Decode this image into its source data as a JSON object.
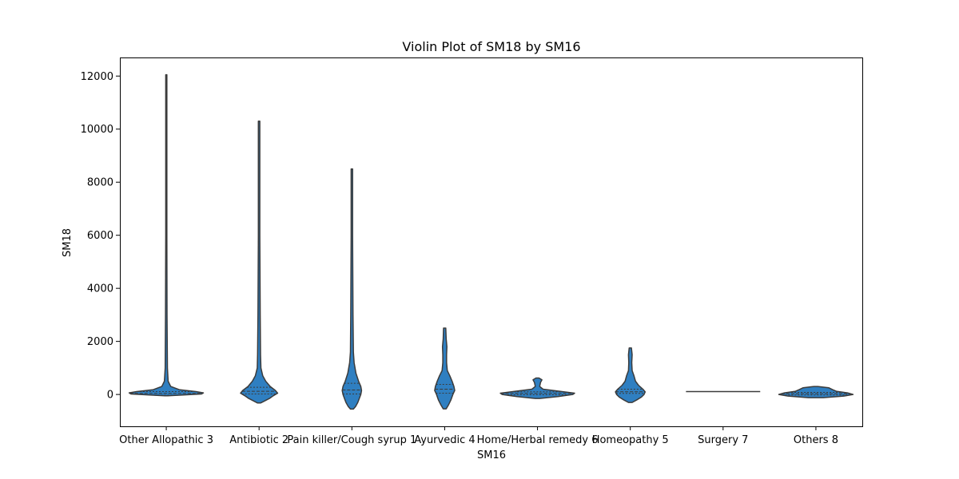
{
  "chart_data": {
    "type": "violin",
    "title": "Violin Plot of SM18 by SM16",
    "xlabel": "SM16",
    "ylabel": "SM18",
    "ylim": [
      -1200,
      12700
    ],
    "yticks": [
      0,
      2000,
      4000,
      6000,
      8000,
      10000,
      12000
    ],
    "grid": false,
    "legend": "none",
    "color": "#2f7fc1",
    "edge_color": "#3b3b3b",
    "inner": "quartile",
    "categories": [
      "Other Allopathic 3",
      "Antibiotic 2",
      "Pain killer/Cough syrup 1",
      "Ayurvedic 4",
      "Home/Herbal remedy 6",
      "Homeopathy 5",
      "Surgery 7",
      "Others 8"
    ],
    "violins": [
      {
        "category": "Other Allopathic 3",
        "quartiles": [
          -30,
          40,
          110
        ],
        "profile": [
          [
            -50,
            0.04
          ],
          [
            -20,
            0.45
          ],
          [
            20,
            0.95
          ],
          [
            60,
            1.0
          ],
          [
            110,
            0.8
          ],
          [
            180,
            0.35
          ],
          [
            300,
            0.12
          ],
          [
            500,
            0.05
          ],
          [
            1000,
            0.03
          ],
          [
            3000,
            0.02
          ],
          [
            6000,
            0.015
          ],
          [
            9000,
            0.015
          ],
          [
            12050,
            0.015
          ]
        ]
      },
      {
        "category": "Antibiotic 2",
        "quartiles": [
          20,
          120,
          270
        ],
        "profile": [
          [
            -320,
            0.04
          ],
          [
            -250,
            0.14
          ],
          [
            -150,
            0.28
          ],
          [
            -50,
            0.38
          ],
          [
            50,
            0.5
          ],
          [
            150,
            0.44
          ],
          [
            300,
            0.3
          ],
          [
            500,
            0.18
          ],
          [
            700,
            0.1
          ],
          [
            1000,
            0.05
          ],
          [
            1500,
            0.04
          ],
          [
            3000,
            0.03
          ],
          [
            6000,
            0.02
          ],
          [
            10300,
            0.02
          ]
        ]
      },
      {
        "category": "Pain killer/Cough syrup 1",
        "quartiles": [
          20,
          170,
          420
        ],
        "profile": [
          [
            -550,
            0.04
          ],
          [
            -450,
            0.1
          ],
          [
            -300,
            0.16
          ],
          [
            -150,
            0.2
          ],
          [
            0,
            0.24
          ],
          [
            150,
            0.26
          ],
          [
            300,
            0.24
          ],
          [
            500,
            0.18
          ],
          [
            800,
            0.11
          ],
          [
            1200,
            0.06
          ],
          [
            1600,
            0.04
          ],
          [
            3000,
            0.03
          ],
          [
            6000,
            0.02
          ],
          [
            8500,
            0.02
          ]
        ]
      },
      {
        "category": "Ayurvedic 4",
        "quartiles": [
          50,
          200,
          380
        ],
        "profile": [
          [
            -540,
            0.04
          ],
          [
            -400,
            0.1
          ],
          [
            -200,
            0.17
          ],
          [
            0,
            0.22
          ],
          [
            150,
            0.27
          ],
          [
            300,
            0.25
          ],
          [
            500,
            0.2
          ],
          [
            700,
            0.14
          ],
          [
            900,
            0.07
          ],
          [
            1200,
            0.05
          ],
          [
            1500,
            0.05
          ],
          [
            1800,
            0.06
          ],
          [
            2100,
            0.04
          ],
          [
            2500,
            0.03
          ]
        ]
      },
      {
        "category": "Home/Herbal remedy 6",
        "quartiles": [
          -10,
          40,
          100
        ],
        "profile": [
          [
            -150,
            0.06
          ],
          [
            -80,
            0.55
          ],
          [
            0,
            0.95
          ],
          [
            50,
            1.0
          ],
          [
            120,
            0.6
          ],
          [
            200,
            0.15
          ],
          [
            300,
            0.06
          ],
          [
            450,
            0.08
          ],
          [
            550,
            0.12
          ],
          [
            620,
            0.04
          ]
        ]
      },
      {
        "category": "Homeopathy 5",
        "quartiles": [
          40,
          100,
          200
        ],
        "profile": [
          [
            -300,
            0.05
          ],
          [
            -200,
            0.18
          ],
          [
            -100,
            0.3
          ],
          [
            0,
            0.37
          ],
          [
            100,
            0.4
          ],
          [
            200,
            0.34
          ],
          [
            350,
            0.22
          ],
          [
            500,
            0.14
          ],
          [
            700,
            0.1
          ],
          [
            900,
            0.05
          ],
          [
            1200,
            0.04
          ],
          [
            1500,
            0.05
          ],
          [
            1750,
            0.03
          ]
        ]
      },
      {
        "category": "Surgery 7",
        "quartiles": [
          110,
          110,
          110
        ],
        "profile": [
          [
            100,
            1.0
          ],
          [
            110,
            1.0
          ],
          [
            120,
            1.0
          ]
        ]
      },
      {
        "category": "Others 8",
        "quartiles": [
          -20,
          30,
          80
        ],
        "profile": [
          [
            -120,
            0.2
          ],
          [
            -60,
            0.75
          ],
          [
            0,
            1.0
          ],
          [
            60,
            0.85
          ],
          [
            120,
            0.55
          ],
          [
            180,
            0.45
          ],
          [
            250,
            0.35
          ],
          [
            300,
            0.05
          ]
        ]
      }
    ]
  }
}
